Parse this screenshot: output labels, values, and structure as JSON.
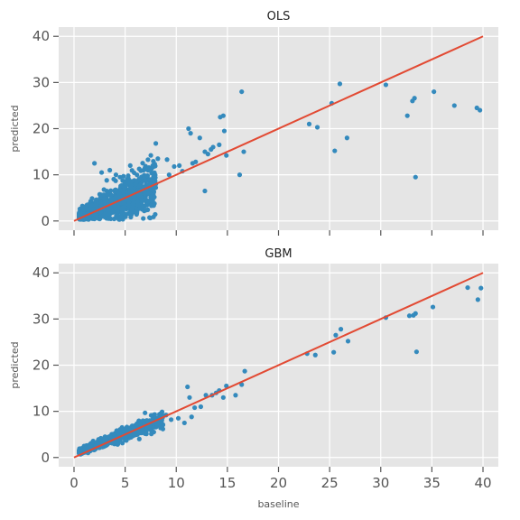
{
  "chart_data": [
    {
      "type": "scatter",
      "title": "OLS",
      "xlabel": "",
      "ylabel": "predicted",
      "xlim": [
        -1.5,
        41.5
      ],
      "ylim": [
        -2,
        42
      ],
      "xticks": [
        0,
        5,
        10,
        15,
        20,
        25,
        30,
        35,
        40
      ],
      "yticks": [
        0,
        10,
        20,
        30,
        40
      ],
      "xtick_labels_shown": false,
      "grid": true,
      "background": "#e5e5e5",
      "point_color": "#348abd",
      "line_color": "#e24a33",
      "reference_line": {
        "x": [
          0,
          40
        ],
        "y": [
          0,
          40
        ]
      },
      "cluster_summary": "dense cloud of points for baseline 0.5–8, predicted roughly 0.5–9, spread widening with baseline",
      "points": {
        "x": [
          2.0,
          2.7,
          3.5,
          4.1,
          5.3,
          3.2,
          4.5,
          6.1,
          6.8,
          7.2,
          8.0,
          5.5,
          7.7,
          8.2,
          9.1,
          9.8,
          10.6,
          11.2,
          11.4,
          12.3,
          12.8,
          13.4,
          13.6,
          14.2,
          14.3,
          14.6,
          14.7,
          14.9,
          13.1,
          12.8,
          11.6,
          11.9,
          8.0,
          7.4,
          9.3,
          10.3,
          16.2,
          16.4,
          16.6,
          23.0,
          23.8,
          25.2,
          25.5,
          26.0,
          26.7,
          30.5,
          32.6,
          33.1,
          33.3,
          33.4,
          35.2,
          37.2,
          39.4,
          39.7
        ],
        "y": [
          12.5,
          10.5,
          11.0,
          10.0,
          9.8,
          8.8,
          9.5,
          8.5,
          11.0,
          9.8,
          16.8,
          12.0,
          12.0,
          13.5,
          13.3,
          11.8,
          10.8,
          20.0,
          19.0,
          18.0,
          15.0,
          15.5,
          16.0,
          16.5,
          22.5,
          22.8,
          19.5,
          14.2,
          14.5,
          6.5,
          12.5,
          12.8,
          8.0,
          9.0,
          10.0,
          12.0,
          10.0,
          28.0,
          15.0,
          21.0,
          20.3,
          25.5,
          15.2,
          29.7,
          18.0,
          29.5,
          22.8,
          26.0,
          26.6,
          9.5,
          28.0,
          25.0,
          24.5,
          24.0
        ]
      }
    },
    {
      "type": "scatter",
      "title": "GBM",
      "xlabel": "baseline",
      "ylabel": "predicted",
      "xlim": [
        -1.5,
        41.5
      ],
      "ylim": [
        -2,
        42
      ],
      "xticks": [
        0,
        5,
        10,
        15,
        20,
        25,
        30,
        35,
        40
      ],
      "yticks": [
        0,
        10,
        20,
        30,
        40
      ],
      "xtick_labels_shown": true,
      "grid": true,
      "background": "#e5e5e5",
      "point_color": "#348abd",
      "line_color": "#e24a33",
      "reference_line": {
        "x": [
          0,
          40
        ],
        "y": [
          0,
          40
        ]
      },
      "cluster_summary": "tight band of points along the diagonal for baseline 0.5–9",
      "points": {
        "x": [
          8.5,
          9.0,
          9.5,
          10.2,
          10.8,
          11.1,
          11.3,
          11.5,
          11.8,
          12.4,
          12.9,
          13.5,
          13.9,
          14.2,
          14.6,
          14.9,
          15.8,
          16.4,
          16.7,
          22.8,
          23.6,
          25.4,
          25.6,
          26.1,
          26.8,
          30.5,
          32.8,
          33.2,
          33.4,
          33.5,
          35.1,
          38.5,
          39.5,
          39.8
        ],
        "y": [
          7.0,
          9.2,
          8.2,
          8.5,
          7.5,
          15.3,
          13.0,
          8.8,
          10.8,
          11.0,
          13.5,
          13.5,
          14.0,
          14.5,
          13.0,
          15.5,
          13.5,
          15.8,
          18.7,
          22.5,
          22.2,
          22.8,
          26.5,
          27.8,
          25.2,
          30.3,
          30.7,
          30.8,
          31.2,
          22.9,
          32.6,
          36.8,
          34.2,
          36.7
        ]
      }
    }
  ]
}
